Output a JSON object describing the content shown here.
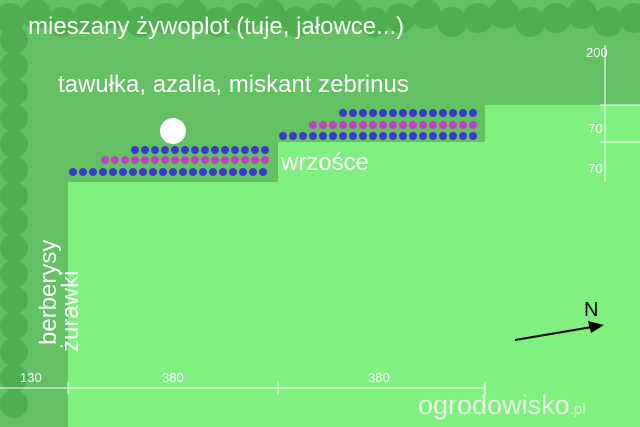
{
  "plan": {
    "hedge": "mieszany żywoplot (tuje, jałowce...)",
    "back_bed": "tawułka, azalia, miskant zebrinus",
    "heather": "wrzośce",
    "left_beds": [
      "berberysy",
      "żurawki"
    ],
    "dimensions": {
      "right": [
        200,
        70,
        70
      ],
      "bottom": [
        130,
        380,
        380
      ]
    },
    "compass": "N"
  },
  "logo": {
    "name": "ogrodowisko",
    "suffix": ".pl"
  }
}
